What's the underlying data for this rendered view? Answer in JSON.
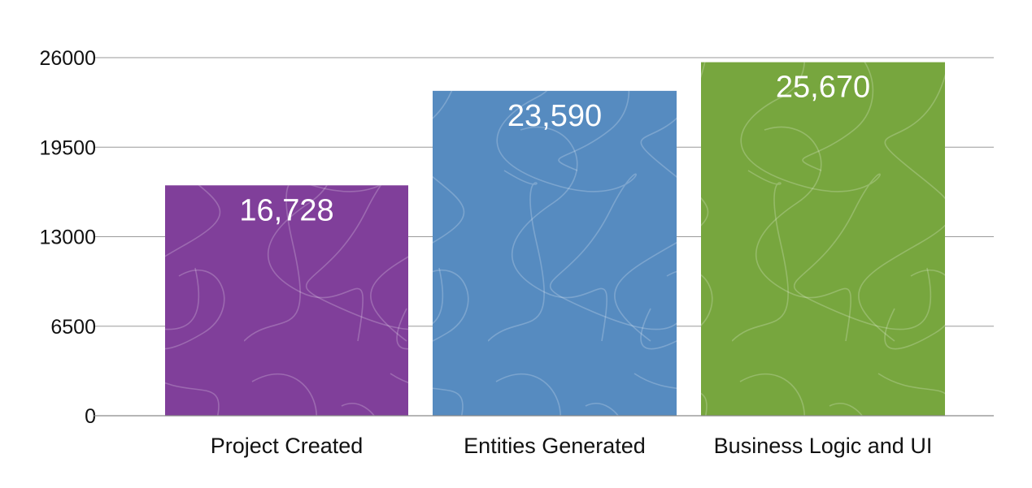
{
  "chart_data": {
    "type": "bar",
    "categories": [
      "Project Created",
      "Entities Generated",
      "Business Logic and UI"
    ],
    "values": [
      16728,
      23590,
      25670
    ],
    "value_labels": [
      "16,728",
      "23,590",
      "25,670"
    ],
    "colors": [
      "#803f9a",
      "#568bc0",
      "#77a63e"
    ],
    "yticks": [
      0,
      6500,
      13000,
      19500,
      26000
    ],
    "ytick_labels": [
      "0",
      "6500",
      "13000",
      "19500",
      "26000"
    ],
    "ylim": [
      0,
      26000
    ],
    "grid": true,
    "legend": "none"
  }
}
